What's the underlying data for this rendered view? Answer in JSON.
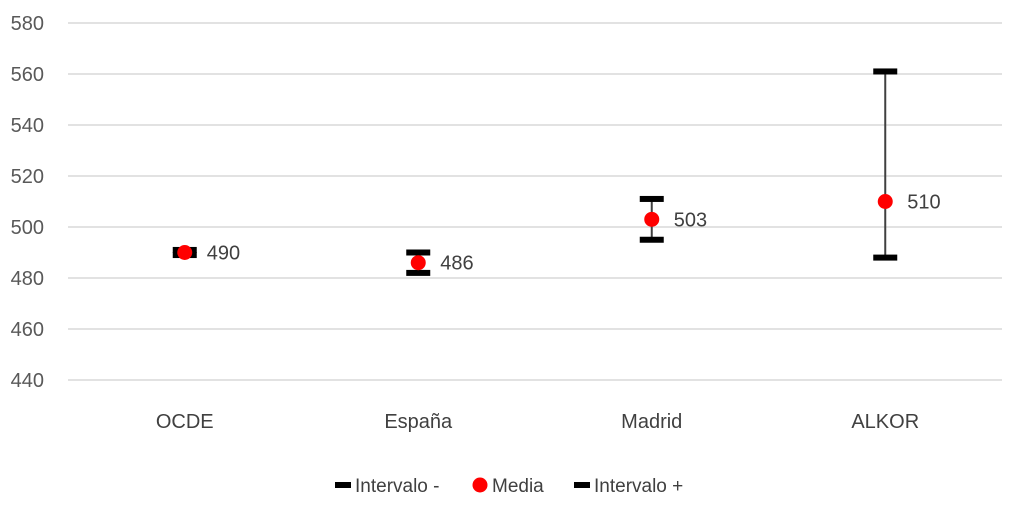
{
  "chart_data": {
    "type": "scatter",
    "categories": [
      "OCDE",
      "España",
      "Madrid",
      "ALKOR"
    ],
    "series": [
      {
        "name": "Intervalo -",
        "values": [
          489,
          482,
          495,
          488
        ],
        "color": "#000000",
        "marker": "dash"
      },
      {
        "name": "Media",
        "values": [
          490,
          486,
          503,
          510
        ],
        "color": "#ff0000",
        "marker": "circle"
      },
      {
        "name": "Intervalo +",
        "values": [
          491,
          490,
          511,
          561
        ],
        "color": "#000000",
        "marker": "dash"
      }
    ],
    "data_labels": [
      "490",
      "486",
      "503",
      "510"
    ],
    "y_ticks": [
      "440",
      "460",
      "480",
      "500",
      "520",
      "540",
      "560",
      "580"
    ],
    "ylim": [
      440,
      580
    ],
    "grid": true,
    "legend_position": "bottom",
    "title": "",
    "xlabel": "",
    "ylabel": ""
  }
}
